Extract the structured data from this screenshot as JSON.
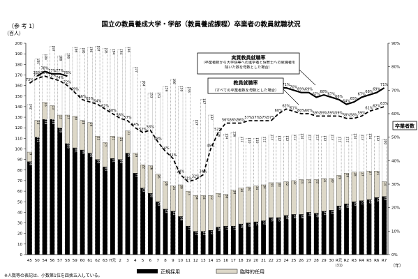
{
  "title": "国立の教員養成大学・学部（教員養成課程）卒業者の教員就職状況",
  "ref_label": "（参 考 1）",
  "unit_left": "（百人）",
  "year_unit": "（年）",
  "note": "※人数等の表記は、小数第1位を四捨五入している。",
  "chart_data": {
    "type": "bar",
    "categories": [
      "45",
      "50",
      "54",
      "56",
      "57",
      "58",
      "59",
      "60",
      "61",
      "62",
      "63",
      "H元",
      "2",
      "3",
      "4",
      "5",
      "6",
      "7",
      "8",
      "9",
      "10",
      "11",
      "12",
      "13",
      "14",
      "15",
      "16",
      "17",
      "18",
      "19",
      "20",
      "21",
      "22",
      "23",
      "24",
      "25",
      "26",
      "27",
      "28",
      "29",
      "30",
      "R元",
      "R2",
      "R3",
      "R4",
      "R5",
      "R6",
      "R7"
    ],
    "x_sublabel": {
      "index": 41,
      "text": "(31)"
    },
    "ylim_left": [
      0,
      200
    ],
    "yticks_left": [
      0,
      10,
      20,
      30,
      40,
      50,
      60,
      70,
      80,
      90,
      100,
      110,
      120,
      130,
      140,
      150,
      160,
      170,
      180,
      190,
      200
    ],
    "ylim_right": [
      0,
      90
    ],
    "yticks_right": [
      "0%",
      "10%",
      "20%",
      "30%",
      "40%",
      "50%",
      "60%",
      "70%",
      "80%",
      "90%"
    ],
    "series": [
      {
        "name": "正規採用",
        "color": "#000000",
        "values": [
          88,
          111,
          128,
          128,
          120,
          105,
          101,
          99,
          96,
          90,
          83,
          91,
          90,
          96,
          77,
          63,
          58,
          50,
          43,
          41,
          36,
          27,
          22,
          22,
          23,
          26,
          27,
          27,
          29,
          30,
          31,
          32,
          35,
          35,
          37,
          38,
          38,
          40,
          39,
          41,
          42,
          46,
          48,
          50,
          51,
          52,
          54,
          55
        ]
      },
      {
        "name": "臨時的任用",
        "color": "#ddd8c8",
        "values": [
          9,
          16,
          16,
          13,
          12,
          27,
          30,
          28,
          29,
          22,
          23,
          21,
          21,
          21,
          19,
          22,
          26,
          26,
          26,
          24,
          30,
          33,
          34,
          34,
          33,
          32,
          30,
          34,
          34,
          34,
          34,
          34,
          33,
          33,
          32,
          32,
          33,
          31,
          32,
          31,
          30,
          29,
          29,
          28,
          27,
          27,
          25,
          14
        ]
      },
      {
        "name": "卒業者数",
        "style": "dotted-outline",
        "values": [
          142,
          185,
          189,
          197,
          188,
          190,
          196,
          195,
          196,
          197,
          195,
          194,
          194,
          196,
          177,
          164,
          153,
          153,
          159,
          166,
          159,
          158,
          127,
          147,
          132,
          116,
          114,
          116,
          111,
          110,
          110,
          111,
          113,
          112,
          112,
          113,
          114,
          113,
          113,
          112,
          113,
          111,
          111,
          114,
          113,
          114,
          112,
          109
        ]
      }
    ],
    "lines": [
      {
        "name": "実質教員就職率",
        "style": "solid",
        "values": [
          null,
          76,
          78,
          77,
          77,
          76,
          null,
          null,
          null,
          null,
          null,
          null,
          null,
          null,
          null,
          null,
          null,
          null,
          null,
          null,
          null,
          null,
          null,
          null,
          null,
          null,
          null,
          null,
          null,
          null,
          null,
          null,
          null,
          71,
          71,
          70,
          69,
          69,
          67,
          68,
          67,
          66,
          64,
          65,
          67,
          68,
          69,
          71
        ]
      },
      {
        "name": "教員就職率",
        "style": "dashed",
        "values": [
          73,
          75,
          76,
          75,
          74,
          72,
          69,
          66,
          65,
          64,
          62,
          60,
          58,
          57,
          54,
          52,
          53,
          48,
          44,
          41,
          34,
          31,
          32,
          34,
          45,
          52,
          56,
          56,
          56,
          57,
          57,
          57,
          57,
          60,
          62,
          61,
          60,
          60,
          59,
          59,
          59,
          59,
          58,
          58,
          59,
          61,
          62,
          63
        ]
      }
    ],
    "callout_solid_title": "実質教員就職率",
    "callout_solid_desc": "（卒業者数から大学院等への進学者と保育士への就職者を除いた数を母数とした場合）",
    "callout_dashed_title": "教員就職率",
    "callout_dashed_desc": "（すべての卒業者数を母数とした場合）",
    "callout_total": "卒業者数",
    "legend": [
      "正規採用",
      "臨時的任用"
    ]
  }
}
